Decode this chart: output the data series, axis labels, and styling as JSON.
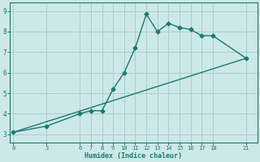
{
  "xlabel": "Humidex (Indice chaleur)",
  "line1_x": [
    0,
    3,
    6,
    7,
    8,
    9,
    10,
    11,
    12,
    13,
    14,
    15,
    16,
    17,
    18,
    21
  ],
  "line1_y": [
    3.1,
    3.4,
    4.0,
    4.15,
    4.15,
    5.2,
    6.0,
    7.2,
    8.85,
    8.0,
    8.4,
    8.2,
    8.1,
    7.8,
    7.8,
    6.7
  ],
  "line2_x": [
    0,
    21
  ],
  "line2_y": [
    3.1,
    6.7
  ],
  "color": "#1a7a6e",
  "bg_color": "#cce8e8",
  "grid_color": "#aacece",
  "xlim": [
    -0.3,
    22.0
  ],
  "ylim": [
    2.6,
    9.4
  ],
  "xticks": [
    0,
    3,
    6,
    7,
    8,
    9,
    10,
    11,
    12,
    13,
    14,
    15,
    16,
    17,
    18,
    21
  ],
  "yticks": [
    3,
    4,
    5,
    6,
    7,
    8,
    9
  ],
  "marker": "D",
  "markersize": 2.5,
  "linewidth": 1.0
}
